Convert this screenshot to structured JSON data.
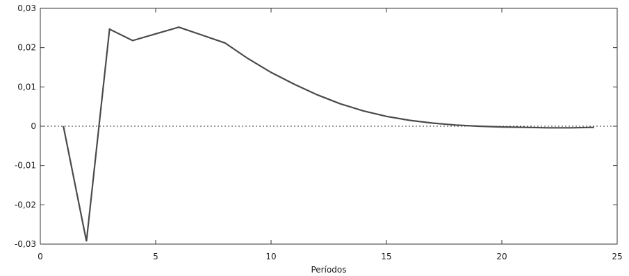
{
  "chart_data": {
    "type": "line",
    "title": "",
    "xlabel": "Períodos",
    "ylabel": "",
    "xlim": [
      0,
      25
    ],
    "ylim": [
      -0.03,
      0.03
    ],
    "x_ticks": [
      0,
      5,
      10,
      15,
      20,
      25
    ],
    "x_tick_labels": [
      "0",
      "5",
      "10",
      "15",
      "20",
      "25"
    ],
    "y_ticks": [
      0.03,
      0.02,
      0.01,
      0,
      -0.01,
      -0.02,
      -0.03
    ],
    "y_tick_labels": [
      "0,03",
      "0,02",
      "0,01",
      "0",
      "-0,01",
      "-0,02",
      "-0,03"
    ],
    "zero_line": "dotted",
    "grid": false,
    "legend": "none",
    "colors": {
      "line": "#4a4a4a",
      "axis": "#333333",
      "zero_line": "#333333"
    },
    "series": [
      {
        "x": [
          1,
          2,
          3,
          4,
          5,
          6,
          7,
          8,
          9,
          10,
          11,
          12,
          13,
          14,
          15,
          16,
          17,
          18,
          19,
          20,
          21,
          22,
          23,
          24
        ],
        "values": [
          0.0,
          -0.0293,
          0.0247,
          0.0218,
          0.0235,
          0.0252,
          0.0232,
          0.0212,
          0.0172,
          0.0137,
          0.0107,
          0.008,
          0.0057,
          0.0039,
          0.0025,
          0.0015,
          0.0008,
          0.0003,
          0.0,
          -0.0002,
          -0.0003,
          -0.0004,
          -0.0004,
          -0.0003
        ]
      }
    ]
  }
}
